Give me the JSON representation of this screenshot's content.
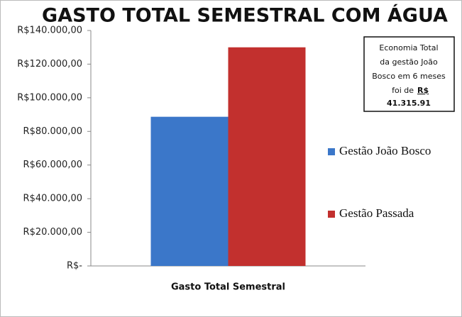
{
  "chart_data": {
    "type": "bar",
    "title": "GASTO TOTAL SEMESTRAL COM ÁGUA",
    "categories": [
      "Gasto Total Semestral"
    ],
    "series": [
      {
        "name": "Gestão João Bosco",
        "color": "#3b77c9",
        "values": [
          88700
        ]
      },
      {
        "name": "Gestão Passada",
        "color": "#c2302e",
        "values": [
          130000
        ]
      }
    ],
    "ylim": [
      0,
      140000
    ],
    "yticks": [
      {
        "value": 0,
        "label": "R$-"
      },
      {
        "value": 20000,
        "label": "R$20.000,00"
      },
      {
        "value": 40000,
        "label": "R$40.000,00"
      },
      {
        "value": 60000,
        "label": "R$60.000,00"
      },
      {
        "value": 80000,
        "label": "R$80.000,00"
      },
      {
        "value": 100000,
        "label": "R$100.000,00"
      },
      {
        "value": 120000,
        "label": "R$120.000,00"
      },
      {
        "value": 140000,
        "label": "R$140.000,00"
      }
    ],
    "legend_position": "right",
    "annotation": {
      "lines": [
        "Economia Total",
        "da gestão João",
        "Bosco em 6 meses",
        "foi de"
      ],
      "currency": "R$",
      "amount": "41.315.91"
    }
  }
}
